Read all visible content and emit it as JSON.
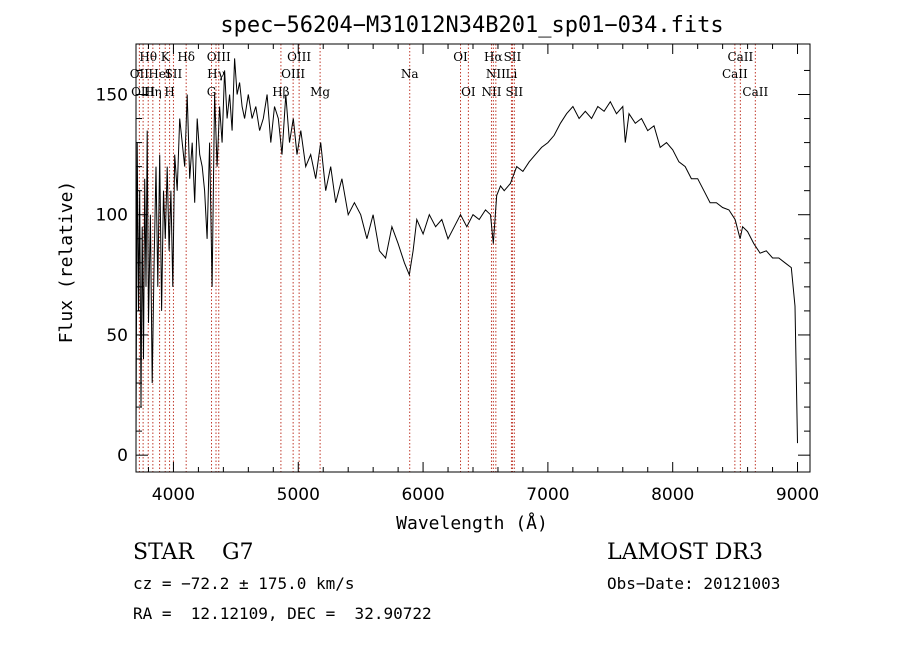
{
  "chart_data": {
    "type": "line",
    "title": "spec−56204−M31012N34B201_sp01−034.fits",
    "xlabel": "Wavelength (Å)",
    "ylabel": "Flux (relative)",
    "xlim": [
      3700,
      9100
    ],
    "ylim": [
      -7,
      171
    ],
    "x_ticks": [
      4000,
      5000,
      6000,
      7000,
      8000,
      9000
    ],
    "y_ticks": [
      0,
      50,
      100,
      150
    ],
    "line_color": "#000000",
    "marker_color": "#c0392b",
    "spectrum": {
      "x": [
        3700,
        3710,
        3720,
        3730,
        3740,
        3750,
        3760,
        3770,
        3780,
        3790,
        3800,
        3815,
        3830,
        3845,
        3860,
        3875,
        3890,
        3905,
        3920,
        3935,
        3950,
        3965,
        3980,
        3995,
        4010,
        4030,
        4050,
        4070,
        4090,
        4110,
        4130,
        4150,
        4170,
        4190,
        4210,
        4230,
        4250,
        4270,
        4290,
        4310,
        4330,
        4350,
        4370,
        4390,
        4410,
        4430,
        4450,
        4470,
        4490,
        4510,
        4530,
        4550,
        4570,
        4600,
        4630,
        4660,
        4690,
        4720,
        4750,
        4780,
        4810,
        4840,
        4870,
        4900,
        4930,
        4960,
        4990,
        5020,
        5060,
        5100,
        5140,
        5180,
        5220,
        5260,
        5300,
        5350,
        5400,
        5450,
        5500,
        5550,
        5600,
        5650,
        5700,
        5750,
        5800,
        5850,
        5890,
        5920,
        5950,
        6000,
        6050,
        6100,
        6150,
        6200,
        6250,
        6300,
        6350,
        6400,
        6450,
        6500,
        6540,
        6563,
        6590,
        6620,
        6650,
        6700,
        6750,
        6800,
        6850,
        6900,
        6950,
        7000,
        7050,
        7100,
        7150,
        7200,
        7250,
        7300,
        7350,
        7400,
        7450,
        7500,
        7550,
        7600,
        7620,
        7650,
        7700,
        7750,
        7800,
        7850,
        7900,
        7950,
        8000,
        8050,
        8100,
        8150,
        8200,
        8250,
        8300,
        8350,
        8400,
        8450,
        8500,
        8540,
        8560,
        8600,
        8650,
        8700,
        8750,
        8800,
        8850,
        8900,
        8950,
        8980,
        9000
      ],
      "y": [
        5,
        130,
        60,
        110,
        20,
        95,
        40,
        115,
        70,
        135,
        55,
        100,
        30,
        80,
        120,
        70,
        125,
        60,
        110,
        90,
        120,
        85,
        110,
        70,
        125,
        110,
        140,
        130,
        120,
        150,
        115,
        130,
        105,
        140,
        125,
        120,
        110,
        90,
        130,
        70,
        150,
        120,
        145,
        130,
        160,
        140,
        150,
        135,
        165,
        150,
        155,
        145,
        140,
        150,
        140,
        145,
        135,
        140,
        150,
        130,
        145,
        140,
        125,
        150,
        130,
        140,
        125,
        135,
        120,
        125,
        115,
        130,
        110,
        120,
        105,
        115,
        100,
        105,
        100,
        90,
        100,
        85,
        82,
        95,
        88,
        80,
        75,
        85,
        98,
        92,
        100,
        95,
        98,
        90,
        95,
        100,
        95,
        100,
        98,
        102,
        100,
        88,
        108,
        112,
        110,
        113,
        120,
        118,
        122,
        125,
        128,
        130,
        133,
        138,
        142,
        145,
        140,
        143,
        140,
        145,
        143,
        147,
        142,
        145,
        130,
        142,
        138,
        140,
        135,
        137,
        128,
        130,
        127,
        122,
        120,
        115,
        115,
        110,
        105,
        105,
        103,
        102,
        98,
        90,
        95,
        93,
        88,
        84,
        85,
        82,
        82,
        80,
        78,
        62,
        5
      ]
    },
    "lines": [
      {
        "label": "Hθ",
        "x": 3798,
        "row": 0
      },
      {
        "label": "OII",
        "x": 3727,
        "row": 1
      },
      {
        "label": "OIII",
        "x": 3757,
        "row": 2
      },
      {
        "label": "Hη",
        "x": 3835,
        "row": 2
      },
      {
        "label": "HeI",
        "x": 3889,
        "row": 1
      },
      {
        "label": "K",
        "x": 3934,
        "row": 0
      },
      {
        "label": "SII",
        "x": 4000,
        "row": 1
      },
      {
        "label": "H",
        "x": 3969,
        "row": 2
      },
      {
        "label": "Hδ",
        "x": 4102,
        "row": 0
      },
      {
        "label": "OIII",
        "x": 4363,
        "row": 0
      },
      {
        "label": "Hγ",
        "x": 4341,
        "row": 1
      },
      {
        "label": "G",
        "x": 4305,
        "row": 2
      },
      {
        "label": "Hβ",
        "x": 4861,
        "row": 2
      },
      {
        "label": "OIII",
        "x": 5007,
        "row": 0
      },
      {
        "label": "OIII",
        "x": 4959,
        "row": 1
      },
      {
        "label": "Mg",
        "x": 5175,
        "row": 2
      },
      {
        "label": "Na",
        "x": 5893,
        "row": 1
      },
      {
        "label": "OI",
        "x": 6300,
        "row": 0
      },
      {
        "label": "OI",
        "x": 6363,
        "row": 2
      },
      {
        "label": "Hα",
        "x": 6563,
        "row": 0
      },
      {
        "label": "SII",
        "x": 6716,
        "row": 0
      },
      {
        "label": "NII",
        "x": 6583,
        "row": 1
      },
      {
        "label": "Li",
        "x": 6708,
        "row": 1
      },
      {
        "label": "NII",
        "x": 6548,
        "row": 2
      },
      {
        "label": "SII",
        "x": 6731,
        "row": 2
      },
      {
        "label": "CaII",
        "x": 8542,
        "row": 0
      },
      {
        "label": "CaII",
        "x": 8498,
        "row": 1
      },
      {
        "label": "CaII",
        "x": 8662,
        "row": 2
      }
    ]
  },
  "info": {
    "class_line": "STAR    G7",
    "cz_line": "cz = −72.2 ± 175.0 km/s",
    "radec_line": "RA =  12.12109, DEC =  32.90722",
    "survey": "LAMOST DR3",
    "obs_date": "Obs−Date: 20121003"
  }
}
